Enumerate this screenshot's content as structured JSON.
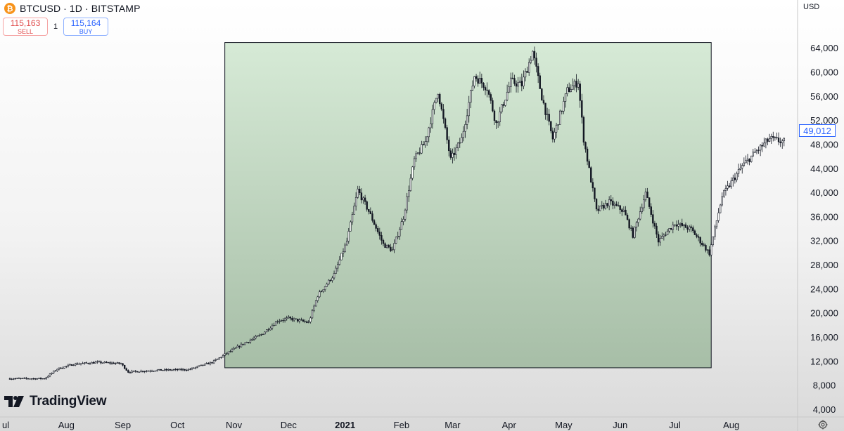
{
  "header": {
    "title": "BTCUSD · 1D · BITSTAMP",
    "logo_icon": "bitcoin-icon",
    "logo_glyph": "₿"
  },
  "trade": {
    "sell_price": "115,163",
    "sell_label": "SELL",
    "buy_price": "115,164",
    "buy_label": "BUY",
    "quantity": "1"
  },
  "axis": {
    "currency": "USD",
    "last_price": "49,012"
  },
  "brand": {
    "name": "TradingView",
    "logo_icon": "tradingview-logo-icon"
  },
  "settings_icon": "gear-icon",
  "colors": {
    "highlight_fill_top": "#d6ead6",
    "highlight_fill_bottom": "#a7bea7",
    "candle": "#131722",
    "last_price": "#2962ff",
    "sell": "#e04c4c",
    "buy": "#2962ff"
  },
  "chart_data": {
    "type": "candlestick",
    "symbol": "BTCUSD",
    "interval": "1D",
    "exchange": "BITSTAMP",
    "y_scale": "linear",
    "ylim": [
      4000,
      66000
    ],
    "y_ticks": [
      "64,000",
      "60,000",
      "56,000",
      "52,000",
      "48,000",
      "44,000",
      "40,000",
      "36,000",
      "32,000",
      "28,000",
      "24,000",
      "20,000",
      "16,000",
      "12,000",
      "8,000",
      "4,000"
    ],
    "x_ticks": [
      "ul",
      "Aug",
      "Sep",
      "Oct",
      "Nov",
      "Dec",
      "2021",
      "Feb",
      "Mar",
      "Apr",
      "May",
      "Jun",
      "Jul",
      "Aug"
    ],
    "x_range": [
      "2020-07-01",
      "2021-09-01"
    ],
    "highlight": {
      "start": "2020-10-27",
      "end": "2021-07-21",
      "low": 11000,
      "high": 65000
    },
    "price_path": [
      [
        "2020-07-01",
        9200
      ],
      [
        "2020-07-20",
        9200
      ],
      [
        "2020-07-27",
        10800
      ],
      [
        "2020-08-05",
        11600
      ],
      [
        "2020-08-18",
        11900
      ],
      [
        "2020-08-31",
        11700
      ],
      [
        "2020-09-04",
        10300
      ],
      [
        "2020-09-20",
        10600
      ],
      [
        "2020-10-07",
        10700
      ],
      [
        "2020-10-20",
        11900
      ],
      [
        "2020-10-27",
        13200
      ],
      [
        "2020-11-05",
        14800
      ],
      [
        "2020-11-16",
        16500
      ],
      [
        "2020-11-25",
        18800
      ],
      [
        "2020-12-01",
        19200
      ],
      [
        "2020-12-12",
        18500
      ],
      [
        "2020-12-17",
        23000
      ],
      [
        "2020-12-26",
        26500
      ],
      [
        "2021-01-02",
        32000
      ],
      [
        "2021-01-08",
        40500
      ],
      [
        "2021-01-14",
        37000
      ],
      [
        "2021-01-22",
        31500
      ],
      [
        "2021-01-27",
        30500
      ],
      [
        "2021-02-02",
        36000
      ],
      [
        "2021-02-08",
        45500
      ],
      [
        "2021-02-14",
        48500
      ],
      [
        "2021-02-21",
        57000
      ],
      [
        "2021-02-28",
        45500
      ],
      [
        "2021-03-06",
        49000
      ],
      [
        "2021-03-13",
        59500
      ],
      [
        "2021-03-20",
        57500
      ],
      [
        "2021-03-25",
        51500
      ],
      [
        "2021-04-02",
        58500
      ],
      [
        "2021-04-08",
        58000
      ],
      [
        "2021-04-14",
        63500
      ],
      [
        "2021-04-19",
        56000
      ],
      [
        "2021-04-25",
        49000
      ],
      [
        "2021-05-03",
        57000
      ],
      [
        "2021-05-09",
        58500
      ],
      [
        "2021-05-12",
        49000
      ],
      [
        "2021-05-19",
        37000
      ],
      [
        "2021-05-26",
        38500
      ],
      [
        "2021-06-03",
        37000
      ],
      [
        "2021-06-08",
        33000
      ],
      [
        "2021-06-15",
        40000
      ],
      [
        "2021-06-22",
        32000
      ],
      [
        "2021-07-01",
        35000
      ],
      [
        "2021-07-10",
        34000
      ],
      [
        "2021-07-20",
        30000
      ],
      [
        "2021-07-27",
        39500
      ],
      [
        "2021-08-07",
        44500
      ],
      [
        "2021-08-15",
        47000
      ],
      [
        "2021-08-22",
        49000
      ],
      [
        "2021-08-30",
        48500
      ]
    ]
  }
}
